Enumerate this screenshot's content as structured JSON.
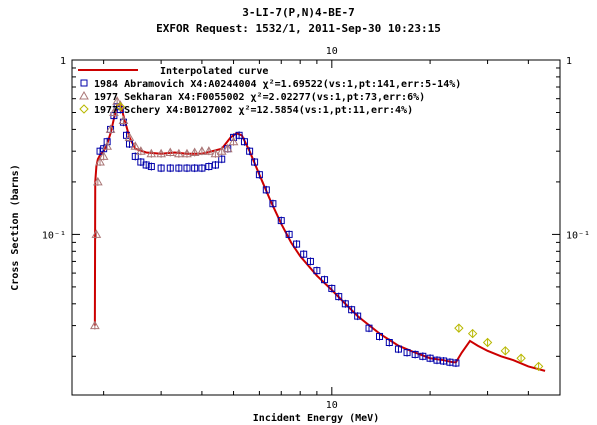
{
  "header": {
    "title": "3-LI-7(P,N)4-BE-7",
    "subtitle": "EXFOR Request: 1532/1, 2011-Sep-30 10:23:15"
  },
  "chart_data": {
    "type": "scatter",
    "title": "3-LI-7(P,N)4-BE-7",
    "xlabel": "Incident Energy (MeV)",
    "ylabel": "Cross Section (barns)",
    "x_scale": "log",
    "y_scale": "log",
    "xlim": [
      1.6,
      50
    ],
    "ylim": [
      0.012,
      1.0
    ],
    "x_ticks": [
      {
        "value": 10,
        "label": "10"
      }
    ],
    "y_ticks": [
      {
        "value": 0.1,
        "label": "10⁻¹"
      },
      {
        "value": 1,
        "label": "1"
      }
    ],
    "top_axis_label": "10",
    "right_axis_labels": [
      "1",
      "10⁻¹"
    ],
    "grid": false,
    "legend_position": "top-left",
    "colors": {
      "interpolated": "#cc0000",
      "abramovich": "#0000aa",
      "sekharan": "#aa7777",
      "schery": "#b8b800",
      "axes": "#000000"
    },
    "series": [
      {
        "name": "Interpolated curve",
        "legend": "Interpolated curve",
        "kind": "line",
        "x": [
          1.88,
          1.885,
          1.9,
          1.92,
          1.95,
          2.0,
          2.05,
          2.1,
          2.15,
          2.2,
          2.25,
          2.3,
          2.4,
          2.5,
          2.7,
          3.0,
          3.3,
          3.6,
          4.0,
          4.3,
          4.6,
          4.9,
          5.1,
          5.3,
          5.6,
          6.0,
          6.5,
          7.0,
          7.5,
          8.0,
          9.0,
          10.0,
          11.0,
          12.0,
          14.0,
          16.0,
          18.0,
          20.0,
          22.0,
          23.5,
          24.0,
          25.0,
          26.5,
          28.0,
          30.0,
          33.0,
          36.0,
          40.0,
          45.0
        ],
        "y": [
          0.03,
          0.2,
          0.245,
          0.27,
          0.285,
          0.3,
          0.33,
          0.38,
          0.46,
          0.55,
          0.56,
          0.48,
          0.36,
          0.31,
          0.295,
          0.29,
          0.295,
          0.29,
          0.29,
          0.3,
          0.31,
          0.36,
          0.38,
          0.37,
          0.3,
          0.22,
          0.155,
          0.115,
          0.09,
          0.075,
          0.058,
          0.048,
          0.04,
          0.034,
          0.027,
          0.023,
          0.021,
          0.0195,
          0.019,
          0.0185,
          0.0185,
          0.021,
          0.0245,
          0.023,
          0.0215,
          0.02,
          0.019,
          0.0175,
          0.0165
        ]
      },
      {
        "name": "1984 Abramovich",
        "legend": "1984 Abramovich  X4:A0244004  χ²=1.69522(vs:1,pt:141,err:5-14%)",
        "kind": "square",
        "x": [
          1.95,
          2.0,
          2.05,
          2.1,
          2.15,
          2.2,
          2.25,
          2.3,
          2.35,
          2.4,
          2.5,
          2.6,
          2.7,
          2.8,
          3.0,
          3.2,
          3.4,
          3.6,
          3.8,
          4.0,
          4.2,
          4.4,
          4.6,
          4.8,
          5.0,
          5.2,
          5.4,
          5.6,
          5.8,
          6.0,
          6.3,
          6.6,
          7.0,
          7.4,
          7.8,
          8.2,
          8.6,
          9.0,
          9.5,
          10.0,
          10.5,
          11.0,
          11.5,
          12.0,
          13.0,
          14.0,
          15.0,
          16.0,
          17.0,
          18.0,
          19.0,
          20.0,
          21.0,
          22.0,
          23.0,
          24.0
        ],
        "y": [
          0.3,
          0.31,
          0.34,
          0.4,
          0.48,
          0.54,
          0.52,
          0.44,
          0.37,
          0.33,
          0.28,
          0.26,
          0.25,
          0.245,
          0.24,
          0.24,
          0.24,
          0.24,
          0.24,
          0.24,
          0.245,
          0.25,
          0.27,
          0.31,
          0.36,
          0.37,
          0.34,
          0.3,
          0.26,
          0.22,
          0.18,
          0.15,
          0.12,
          0.1,
          0.088,
          0.077,
          0.07,
          0.062,
          0.055,
          0.049,
          0.044,
          0.04,
          0.037,
          0.034,
          0.029,
          0.026,
          0.024,
          0.022,
          0.021,
          0.0205,
          0.02,
          0.0195,
          0.019,
          0.0188,
          0.0185,
          0.0183
        ]
      },
      {
        "name": "1977 Sekharan",
        "legend": "1977 Sekharan    X4:F0055002  χ²=2.02277(vs:1,pt:73,err:6%)",
        "kind": "triangle",
        "x": [
          1.88,
          1.9,
          1.92,
          1.95,
          2.0,
          2.05,
          2.1,
          2.15,
          2.2,
          2.25,
          2.3,
          2.4,
          2.5,
          2.6,
          2.8,
          3.0,
          3.2,
          3.4,
          3.6,
          3.8,
          4.0,
          4.2,
          4.4,
          4.6,
          4.8,
          5.0
        ],
        "y": [
          0.03,
          0.1,
          0.2,
          0.26,
          0.28,
          0.32,
          0.4,
          0.5,
          0.58,
          0.55,
          0.45,
          0.36,
          0.32,
          0.3,
          0.29,
          0.29,
          0.295,
          0.29,
          0.29,
          0.295,
          0.3,
          0.3,
          0.29,
          0.3,
          0.31,
          0.34
        ]
      },
      {
        "name": "1977 Schery",
        "legend": "1977 Schery      X4:B0127002  χ²=12.5854(vs:1,pt:11,err:4%)",
        "kind": "diamond",
        "x": [
          2.25,
          24.5,
          27.0,
          30.0,
          34.0,
          38.0,
          43.0
        ],
        "y": [
          0.54,
          0.029,
          0.027,
          0.024,
          0.0215,
          0.0195,
          0.0175
        ]
      }
    ]
  }
}
